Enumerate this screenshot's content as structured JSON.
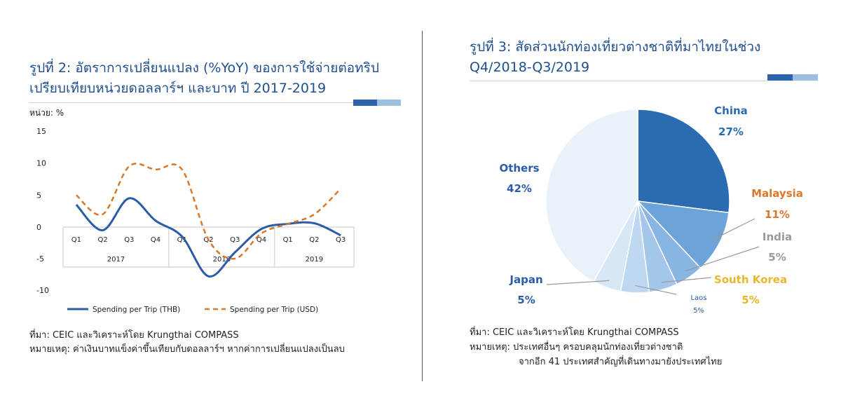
{
  "left": {
    "title_line1": "รูปที่ 2: อัตราการเปลี่ยนแปลง (%YoY) ของการใช้จ่ายต่อทริป",
    "title_line2": "เปรียบเทียบหน่วยดอลลาร์ฯ และบาท ปี 2017-2019",
    "unit_label": "หน่วย: %",
    "source": "ที่มา: CEIC และวิเคราะห์โดย Krungthai COMPASS",
    "note": "หมายเหตุ: ค่าเงินบาทแข็งค่าขึ้นเทียบกับดอลลาร์ฯ หากค่าการเปลี่ยนแปลงเป็นลบ"
  },
  "right": {
    "title_line1": "รูปที่ 3: สัดส่วนนักท่องเที่ยวต่างชาติที่มาไทยในช่วง",
    "title_line2": "Q4/2018-Q3/2019",
    "source": "ที่มา: CEIC และวิเคราะห์โดย Krungthai COMPASS",
    "note_line1": "หมายเหตุ: ประเทศอื่นๆ ครอบคลุมนักท่องเที่ยวต่างชาติ",
    "note_line2": "จากอีก 41 ประเทศสำคัญที่เดินทางมายังประเทศไทย"
  },
  "colors": {
    "title": "#1f4f8e",
    "thb_line": "#2a5ca8",
    "usd_line": "#d9772b",
    "china": "#2b6cb0",
    "malaysia": "#6ea3d9",
    "india": "#89b5e3",
    "south_korea": "#a3c6ea",
    "laos": "#bed8f1",
    "japan": "#d6e7f6",
    "others": "#e9f2fa"
  },
  "chart_data": [
    {
      "type": "line",
      "x": [
        "Q1",
        "Q2",
        "Q3",
        "Q4",
        "Q1",
        "Q2",
        "Q3",
        "Q4",
        "Q1",
        "Q2",
        "Q3"
      ],
      "x_groups": [
        {
          "label": "2017",
          "count": 4
        },
        {
          "label": "2018",
          "count": 4
        },
        {
          "label": "2019",
          "count": 3
        }
      ],
      "yticks": [
        15,
        10,
        5,
        0,
        -5,
        -10
      ],
      "ylim": [
        -10,
        15
      ],
      "series": [
        {
          "name": "Spending per Trip (THB)",
          "style": "solid",
          "values": [
            3.5,
            -0.5,
            4.5,
            1.0,
            -1.5,
            -7.8,
            -4.0,
            -0.3,
            0.5,
            0.6,
            -1.3
          ]
        },
        {
          "name": "Spending per Trip (USD)",
          "style": "dashed",
          "values": [
            5.0,
            2.0,
            9.5,
            9.0,
            9.0,
            -2.0,
            -5.0,
            -1.0,
            0.5,
            2.0,
            6.0
          ]
        }
      ],
      "legend_position": "bottom"
    },
    {
      "type": "pie",
      "slices": [
        {
          "label": "China",
          "value": 27,
          "value_label": "27%"
        },
        {
          "label": "Malaysia",
          "value": 11,
          "value_label": "11%"
        },
        {
          "label": "India",
          "value": 5,
          "value_label": "5%"
        },
        {
          "label": "South Korea",
          "value": 5,
          "value_label": "5%"
        },
        {
          "label": "Laos",
          "value": 5,
          "value_label": "5%"
        },
        {
          "label": "Japan",
          "value": 5,
          "value_label": "5%"
        },
        {
          "label": "Others",
          "value": 42,
          "value_label": "42%"
        }
      ]
    }
  ]
}
